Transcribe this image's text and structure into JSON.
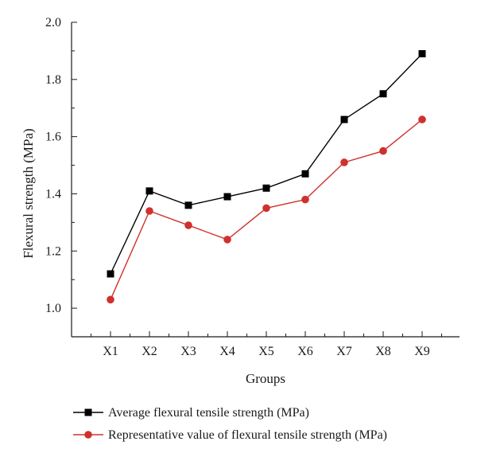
{
  "chart_data": {
    "type": "line",
    "categories": [
      "X1",
      "X2",
      "X3",
      "X4",
      "X5",
      "X6",
      "X7",
      "X8",
      "X9"
    ],
    "series": [
      {
        "name": "Average flexural tensile strength (MPa)",
        "color": "#000000",
        "marker": "square",
        "values": [
          1.12,
          1.41,
          1.36,
          1.39,
          1.42,
          1.47,
          1.66,
          1.75,
          1.89
        ]
      },
      {
        "name": "Representative value of flexural tensile strength (MPa)",
        "color": "#d0312d",
        "marker": "circle",
        "values": [
          1.03,
          1.34,
          1.29,
          1.24,
          1.35,
          1.38,
          1.51,
          1.55,
          1.66
        ]
      }
    ],
    "xlabel": "Groups",
    "ylabel": "Flexural strength (MPa)",
    "ylim": [
      0.9,
      2.0
    ],
    "yticks": [
      "1.0",
      "1.2",
      "1.4",
      "1.6",
      "1.8",
      "2.0"
    ],
    "legend_position": "bottom",
    "grid": false
  }
}
